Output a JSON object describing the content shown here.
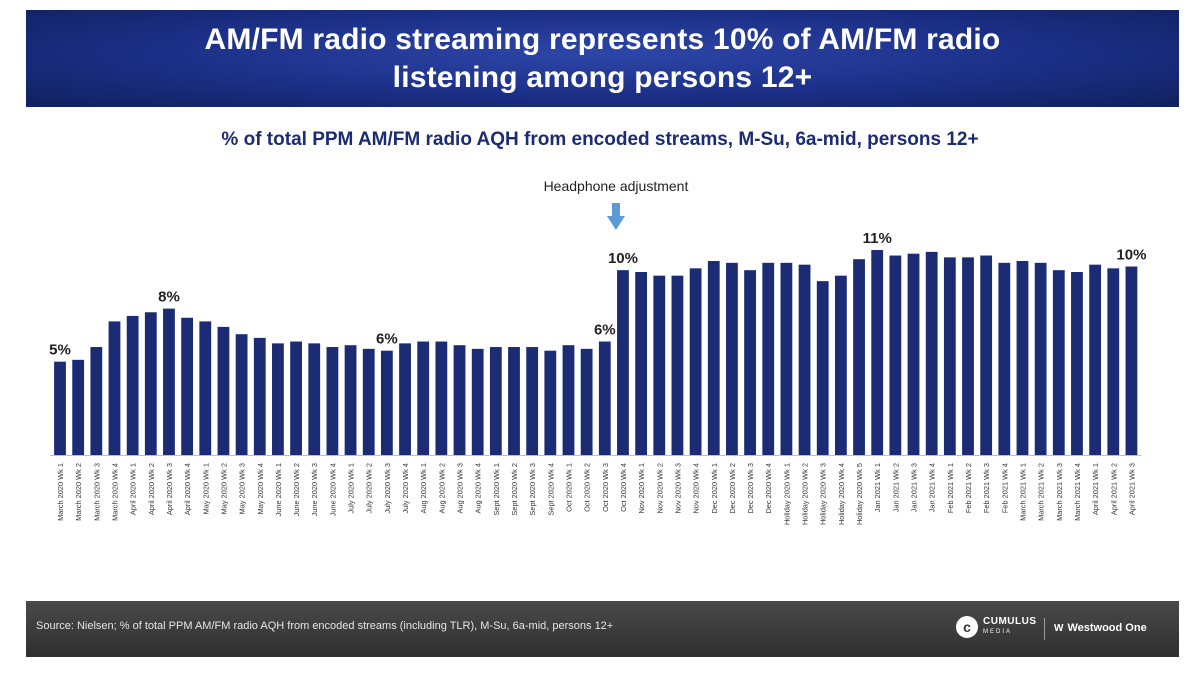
{
  "header": {
    "title_line1": "AM/FM radio streaming represents 10% of AM/FM radio",
    "title_line2": "listening among persons 12+"
  },
  "subtitle": "% of total PPM AM/FM radio AQH from encoded streams, M-Su, 6a-mid, persons 12+",
  "footer": {
    "source": "Source: Nielsen; % of total PPM AM/FM radio AQH from encoded streams (including TLR), M-Su, 6a-mid, persons 12+",
    "logo_cumulus": "CUMULUS",
    "logo_cumulus_sub": "MEDIA",
    "logo_westwood": "Westwood One",
    "logo_westwood_mark": "W"
  },
  "colors": {
    "bar": "#1b2c74",
    "banner": "#1b2f86",
    "arrow": "#5b9bd5",
    "subtitle": "#1b2c74"
  },
  "chart_data": {
    "type": "bar",
    "annotation": {
      "text": "Headphone adjustment",
      "category_index": 31
    },
    "categories": [
      "March 2020 Wk 1",
      "March 2020 Wk 2",
      "March 2020 Wk 3",
      "March 2020 Wk 4",
      "April 2020 Wk 1",
      "April 2020 Wk 2",
      "April 2020 Wk 3",
      "April 2020 Wk 4",
      "May 2020 Wk 1",
      "May 2020 Wk 2",
      "May 2020 Wk 3",
      "May 2020 Wk 4",
      "June 2020 Wk 1",
      "June 2020 Wk 2",
      "June 2020 Wk 3",
      "June 2020 Wk 4",
      "July 2020 Wk 1",
      "July 2020 Wk 2",
      "July 2020 Wk 3",
      "July 2020 Wk 4",
      "Aug 2020 Wk 1",
      "Aug 2020 Wk 2",
      "Aug 2020 Wk 3",
      "Aug 2020 Wk 4",
      "Sept 2020 Wk 1",
      "Sept 2020 Wk 2",
      "Sept 2020 Wk 3",
      "Sept 2020 Wk 4",
      "Oct 2020 Wk 1",
      "Oct 2020 Wk 2",
      "Oct 2020 Wk 3",
      "Oct 2020 Wk 4",
      "Nov 2020 Wk 1",
      "Nov 2020 Wk 2",
      "Nov 2020 Wk 3",
      "Nov 2020 Wk 4",
      "Dec 2020 Wk 1",
      "Dec 2020 Wk 2",
      "Dec 2020 Wk 3",
      "Dec 2020 Wk 4",
      "Holiday 2020 Wk 1",
      "Holiday 2020 Wk 2",
      "Holiday 2020 Wk 3",
      "Holiday 2020 Wk 4",
      "Holiday 2020 Wk 5",
      "Jan 2021 Wk 1",
      "Jan 2021 Wk 2",
      "Jan 2021 Wk 3",
      "Jan 2021 Wk 4",
      "Feb 2021 Wk 1",
      "Feb 2021 Wk 2",
      "Feb 2021 Wk 3",
      "Feb 2021 Wk 4",
      "March 2021 Wk 1",
      "March 2021 Wk 2",
      "March 2021 Wk 3",
      "March 2021 Wk 4",
      "April 2021 Wk 1",
      "April 2021 Wk 2",
      "April 2021 Wk 3"
    ],
    "values": [
      5.1,
      5.2,
      5.9,
      7.3,
      7.6,
      7.8,
      8.0,
      7.5,
      7.3,
      7.0,
      6.6,
      6.4,
      6.1,
      6.2,
      6.1,
      5.9,
      6.0,
      5.8,
      5.7,
      6.1,
      6.2,
      6.2,
      6.0,
      5.8,
      5.9,
      5.9,
      5.9,
      5.7,
      6.0,
      5.8,
      6.2,
      10.1,
      10.0,
      9.8,
      9.8,
      10.2,
      10.6,
      10.5,
      10.1,
      10.5,
      10.5,
      10.4,
      9.5,
      9.8,
      10.7,
      11.2,
      10.9,
      11.0,
      11.1,
      10.8,
      10.8,
      10.9,
      10.5,
      10.6,
      10.5,
      10.1,
      10.0,
      10.4,
      10.2,
      10.3
    ],
    "data_labels": [
      {
        "index": 0,
        "text": "5%"
      },
      {
        "index": 6,
        "text": "8%"
      },
      {
        "index": 18,
        "text": "6%"
      },
      {
        "index": 30,
        "text": "6%"
      },
      {
        "index": 31,
        "text": "10%"
      },
      {
        "index": 45,
        "text": "11%"
      },
      {
        "index": 59,
        "text": "10%"
      }
    ],
    "ylim": [
      0,
      12
    ],
    "grid": false,
    "y_axis_shown": false
  }
}
